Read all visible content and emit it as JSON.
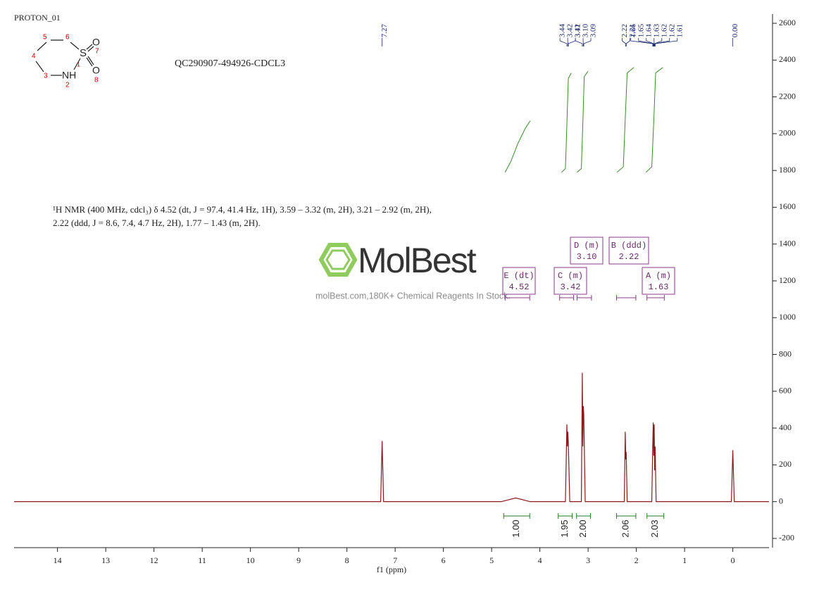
{
  "chart_data": {
    "type": "line",
    "header": "PROTON_01",
    "title": "QC290907-494926-CDCL3",
    "xlabel": "f1 (ppm)",
    "description": [
      "¹H NMR (400 MHz, cdcl₃) δ 4.52 (dt, J = 97.4, 41.4 Hz, 1H), 3.59 – 3.32 (m, 2H), 3.21 – 2.92 (m, 2H),",
      "2.22 (ddd, J = 8.6, 7.4, 4.7 Hz, 2H), 1.77 – 1.43 (m, 2H)."
    ],
    "watermark": {
      "brand": "MolBest",
      "caption": "molBest.com,180K+ Chemical Reagents In Stock."
    },
    "structure": {
      "atoms": [
        "S",
        "NH",
        "O",
        "O",
        "1",
        "2",
        "3",
        "4",
        "5",
        "6",
        "7",
        "8"
      ]
    },
    "xlim": [
      14.9,
      -0.75
    ],
    "xticks": [
      14,
      13,
      12,
      11,
      10,
      9,
      8,
      7,
      6,
      5,
      4,
      3,
      2,
      1,
      0
    ],
    "ylim": [
      -250,
      2650
    ],
    "yticks": [
      -200,
      0,
      200,
      400,
      600,
      800,
      1000,
      1200,
      1400,
      1600,
      1800,
      2000,
      2200,
      2400,
      2600
    ],
    "series": [
      {
        "color": "#8b1a1a",
        "x": [
          14.9,
          7.3,
          7.27,
          7.24,
          4.8,
          4.5,
          4.2,
          3.47,
          3.44,
          3.43,
          3.42,
          3.41,
          3.38,
          3.14,
          3.12,
          3.11,
          3.1,
          3.09,
          3.06,
          2.25,
          2.23,
          2.22,
          2.21,
          2.19,
          1.68,
          1.66,
          1.65,
          1.64,
          1.63,
          1.62,
          1.61,
          1.59,
          0.03,
          0,
          -0.03,
          -0.75
        ],
        "values": [
          0,
          0,
          330,
          0,
          0,
          20,
          0,
          0,
          420,
          300,
          380,
          320,
          0,
          0,
          700,
          300,
          520,
          480,
          0,
          0,
          380,
          230,
          270,
          0,
          0,
          300,
          430,
          250,
          420,
          170,
          300,
          0,
          0,
          280,
          0,
          0
        ]
      },
      {
        "color": "#3a8a2a",
        "x": [
          4.72,
          4.6,
          4.45,
          4.3,
          4.2
        ],
        "values": [
          1790,
          1850,
          1950,
          2030,
          2070
        ]
      },
      {
        "color": "#3a8a2a",
        "x": [
          3.55,
          3.47,
          3.44,
          3.41,
          3.35
        ],
        "values": [
          1790,
          1810,
          2050,
          2300,
          2330
        ]
      },
      {
        "color": "#3a8a2a",
        "x": [
          3.23,
          3.14,
          3.11,
          3.08,
          3.0
        ],
        "values": [
          1790,
          1810,
          2050,
          2310,
          2340
        ]
      },
      {
        "color": "#3a8a2a",
        "x": [
          2.4,
          2.27,
          2.23,
          2.19,
          2.05
        ],
        "values": [
          1790,
          1820,
          2080,
          2330,
          2360
        ]
      },
      {
        "color": "#3a8a2a",
        "x": [
          1.8,
          1.68,
          1.64,
          1.6,
          1.45
        ],
        "values": [
          1790,
          1820,
          2060,
          2330,
          2360
        ]
      }
    ],
    "peak_labels": [
      7.27,
      3.44,
      3.42,
      3.41,
      3.12,
      {
        "value": 3.1,
        "label": "3.10"
      },
      3.09,
      2.22,
      2.21,
      1.66,
      1.65,
      1.64,
      1.63,
      1.62,
      1.62,
      1.61,
      {
        "value": 0,
        "label": "0.00"
      }
    ],
    "multiplets": [
      {
        "label": "E (dt)",
        "shift": 4.52,
        "range": [
          4.72,
          4.21
        ]
      },
      {
        "label": "C (m)",
        "shift": 3.42,
        "range": [
          3.59,
          3.3
        ]
      },
      {
        "label": "D (m)",
        "shift": {
          "value": 3.1,
          "label": "3.10"
        },
        "range": [
          3.23,
          2.93
        ]
      },
      {
        "label": "B (ddd)",
        "shift": 2.22,
        "range": [
          2.41,
          2.01
        ]
      },
      {
        "label": "A (m)",
        "shift": 1.63,
        "range": [
          1.78,
          1.42
        ]
      }
    ],
    "integrals": [
      {
        "value": {
          "value": 1,
          "label": "1.00"
        },
        "range": [
          4.75,
          4.21
        ]
      },
      {
        "value": 1.95,
        "range": [
          3.62,
          3.33
        ]
      },
      {
        "value": {
          "value": 2,
          "label": "2.00"
        },
        "range": [
          3.24,
          2.95
        ]
      },
      {
        "value": 2.06,
        "range": [
          2.41,
          2.01
        ]
      },
      {
        "value": 2.03,
        "range": [
          1.78,
          1.43
        ]
      }
    ]
  }
}
